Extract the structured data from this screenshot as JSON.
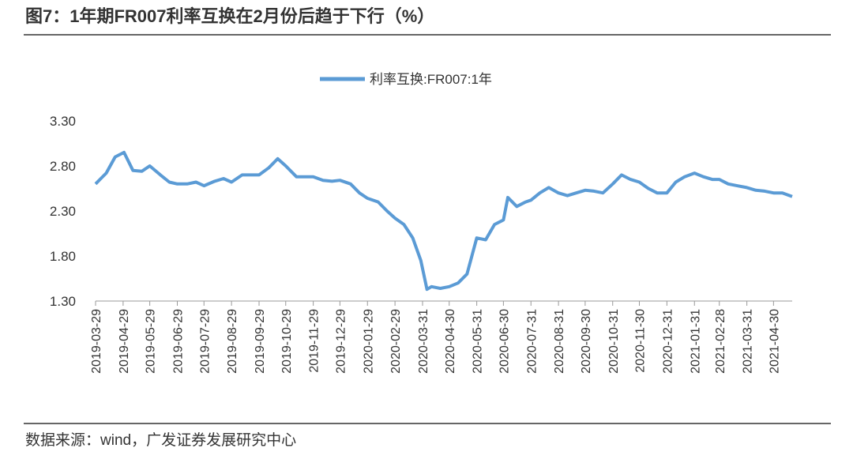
{
  "chart_data": {
    "type": "line",
    "title": "图7：1年期FR007利率互换在2月份后趋于下行（%）",
    "source": "数据来源：wind，广发证券发展研究中心",
    "series": [
      {
        "name": "利率互换:FR007:1年",
        "color": "#5b9bd5",
        "x": [
          "2019-03-29",
          "2019-04-10",
          "2019-04-20",
          "2019-04-30",
          "2019-05-10",
          "2019-05-20",
          "2019-05-29",
          "2019-06-10",
          "2019-06-20",
          "2019-06-29",
          "2019-07-10",
          "2019-07-20",
          "2019-07-29",
          "2019-08-10",
          "2019-08-20",
          "2019-08-29",
          "2019-09-10",
          "2019-09-20",
          "2019-09-29",
          "2019-10-10",
          "2019-10-20",
          "2019-10-29",
          "2019-11-10",
          "2019-11-20",
          "2019-11-29",
          "2019-12-10",
          "2019-12-20",
          "2019-12-29",
          "2020-01-10",
          "2020-01-20",
          "2020-01-29",
          "2020-02-10",
          "2020-02-20",
          "2020-02-29",
          "2020-03-10",
          "2020-03-20",
          "2020-03-29",
          "2020-04-05",
          "2020-04-10",
          "2020-04-20",
          "2020-04-30",
          "2020-05-10",
          "2020-05-20",
          "2020-05-31",
          "2020-06-10",
          "2020-06-20",
          "2020-06-30",
          "2020-07-05",
          "2020-07-15",
          "2020-07-25",
          "2020-07-31",
          "2020-08-10",
          "2020-08-20",
          "2020-08-31",
          "2020-09-10",
          "2020-09-20",
          "2020-09-30",
          "2020-10-10",
          "2020-10-20",
          "2020-10-31",
          "2020-11-10",
          "2020-11-20",
          "2020-11-30",
          "2020-12-10",
          "2020-12-20",
          "2020-12-31",
          "2021-01-10",
          "2021-01-20",
          "2021-01-31",
          "2021-02-10",
          "2021-02-20",
          "2021-02-28",
          "2021-03-10",
          "2021-03-20",
          "2021-03-31",
          "2021-04-10",
          "2021-04-20",
          "2021-04-30",
          "2021-05-10",
          "2021-05-21"
        ],
        "values": [
          2.6,
          2.72,
          2.9,
          2.95,
          2.75,
          2.74,
          2.8,
          2.7,
          2.62,
          2.6,
          2.6,
          2.62,
          2.58,
          2.63,
          2.66,
          2.62,
          2.7,
          2.7,
          2.7,
          2.78,
          2.88,
          2.8,
          2.68,
          2.68,
          2.68,
          2.64,
          2.63,
          2.64,
          2.6,
          2.5,
          2.44,
          2.4,
          2.3,
          2.22,
          2.15,
          2.0,
          1.75,
          1.43,
          1.46,
          1.44,
          1.46,
          1.5,
          1.6,
          2.0,
          1.98,
          2.15,
          2.2,
          2.45,
          2.35,
          2.4,
          2.42,
          2.5,
          2.56,
          2.5,
          2.47,
          2.5,
          2.53,
          2.52,
          2.5,
          2.6,
          2.7,
          2.65,
          2.62,
          2.55,
          2.5,
          2.5,
          2.62,
          2.68,
          2.72,
          2.68,
          2.65,
          2.65,
          2.6,
          2.58,
          2.56,
          2.53,
          2.52,
          2.5,
          2.5,
          2.46
        ]
      }
    ],
    "xlim": [
      "2019-03-29",
      "2021-05-21"
    ],
    "xticks": [
      "2019-03-29",
      "2019-04-29",
      "2019-05-29",
      "2019-06-29",
      "2019-07-29",
      "2019-08-29",
      "2019-09-29",
      "2019-10-29",
      "2019-11-29",
      "2019-12-29",
      "2020-01-29",
      "2020-02-29",
      "2020-03-31",
      "2020-04-30",
      "2020-05-31",
      "2020-06-30",
      "2020-07-31",
      "2020-08-31",
      "2020-09-30",
      "2020-10-31",
      "2020-11-30",
      "2020-12-31",
      "2021-01-31",
      "2021-02-28",
      "2021-03-31",
      "2021-04-30"
    ],
    "ylim": [
      1.3,
      3.3
    ],
    "yticks": [
      {
        "value": 1.3,
        "label": "1.30"
      },
      {
        "value": 1.8,
        "label": "1.80"
      },
      {
        "value": 2.3,
        "label": "2.30"
      },
      {
        "value": 2.8,
        "label": "2.80"
      },
      {
        "value": 3.3,
        "label": "3.30"
      }
    ],
    "legend": "top"
  }
}
